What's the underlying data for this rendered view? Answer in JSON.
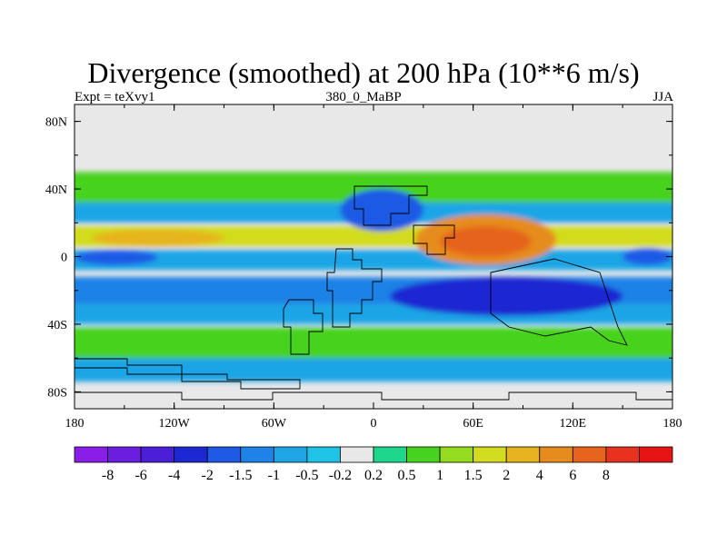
{
  "chart_data": {
    "type": "heatmap",
    "title": "Divergence (smoothed) at 200 hPa (10**6 m/s)",
    "subtitle_left": "Expt = teXvy1",
    "subtitle_center": "380_0_MaBP",
    "subtitle_right": "JJA",
    "xlim": [
      -180,
      180
    ],
    "ylim": [
      -90,
      90
    ],
    "x_ticks": [
      {
        "value": -180,
        "label": "180"
      },
      {
        "value": -120,
        "label": "120W"
      },
      {
        "value": -60,
        "label": "60W"
      },
      {
        "value": 0,
        "label": "0"
      },
      {
        "value": 60,
        "label": "60E"
      },
      {
        "value": 120,
        "label": "120E"
      },
      {
        "value": 180,
        "label": "180"
      }
    ],
    "y_ticks": [
      {
        "value": 80,
        "label": "80N"
      },
      {
        "value": 40,
        "label": "40N"
      },
      {
        "value": 0,
        "label": "0"
      },
      {
        "value": -40,
        "label": "40S"
      },
      {
        "value": -80,
        "label": "80S"
      }
    ],
    "colorbar": {
      "colors": [
        "#8a1ee6",
        "#6a1ee0",
        "#4b1ed8",
        "#1e28d2",
        "#1e5ae6",
        "#1e82e6",
        "#1ea5e6",
        "#1ec3e6",
        "#e8e8e8",
        "#1ed68c",
        "#46d21e",
        "#96dc1e",
        "#d2dc1e",
        "#e6b41e",
        "#e68c1e",
        "#e6641e",
        "#e6321e",
        "#e61414"
      ],
      "labels": [
        "-8",
        "-6",
        "-4",
        "-2",
        "-1.5",
        "-1",
        "-0.5",
        "-0.2",
        "0.2",
        "0.5",
        "1",
        "1.5",
        "2",
        "4",
        "6",
        "8"
      ]
    },
    "field_bands": [
      {
        "name": "polar-south-neutral",
        "lat": [
          -90,
          -62
        ],
        "value": 0
      },
      {
        "name": "south-high-lat-band",
        "lat": [
          -74,
          -60
        ],
        "value": -0.6
      },
      {
        "name": "south-mid-lat-band",
        "lat": [
          -60,
          -42
        ],
        "value": 0.7
      },
      {
        "name": "south-subtropical-convergence",
        "lat": [
          -40,
          -28
        ],
        "value": -0.8
      },
      {
        "name": "south-tropical-convergence",
        "lat": [
          -28,
          -12
        ],
        "value": -1.2
      },
      {
        "name": "equatorial-convergence",
        "lat": [
          -8,
          4
        ],
        "value": -0.9
      },
      {
        "name": "north-tropical-divergence",
        "lat": [
          6,
          18
        ],
        "value": 1.8
      },
      {
        "name": "north-subtropical-convergence",
        "lat": [
          20,
          32
        ],
        "value": -0.6
      },
      {
        "name": "north-mid-lat-divergence",
        "lat": [
          32,
          50
        ],
        "value": 0.6
      },
      {
        "name": "polar-north-neutral",
        "lat": [
          50,
          90
        ],
        "value": 0
      }
    ],
    "field_features": [
      {
        "name": "asian-monsoon-divergence",
        "lon": [
          25,
          110
        ],
        "lat": [
          -5,
          25
        ],
        "value": 4
      },
      {
        "name": "asian-monsoon-core",
        "lon": [
          40,
          95
        ],
        "lat": [
          0,
          18
        ],
        "value": 6
      },
      {
        "name": "indian-ocean-convergence",
        "lon": [
          10,
          150
        ],
        "lat": [
          -35,
          -12
        ],
        "value": -2.5
      },
      {
        "name": "indian-ocean-core",
        "lon": [
          30,
          80
        ],
        "lat": [
          -28,
          -16
        ],
        "value": -4
      },
      {
        "name": "north-africa-convergence",
        "lon": [
          -20,
          30
        ],
        "lat": [
          15,
          40
        ],
        "value": -2
      },
      {
        "name": "pacific-convergence",
        "lon": [
          -180,
          -130
        ],
        "lat": [
          -5,
          4
        ],
        "value": -2
      },
      {
        "name": "pacific-divergence",
        "lon": [
          -170,
          -90
        ],
        "lat": [
          6,
          16
        ],
        "value": 2
      },
      {
        "name": "east-pacific-convergence",
        "lon": [
          150,
          180
        ],
        "lat": [
          -5,
          5
        ],
        "value": -2
      }
    ]
  }
}
